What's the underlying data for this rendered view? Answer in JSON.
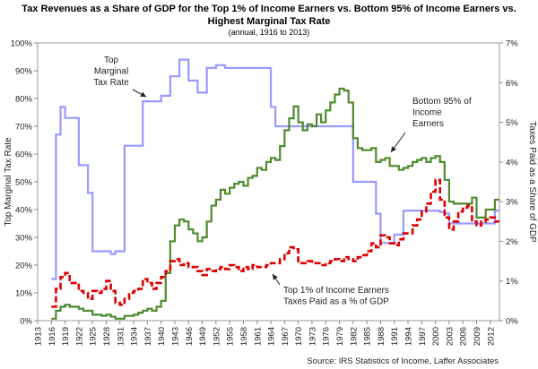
{
  "chart_data": {
    "type": "line",
    "title_line1": "Tax Revenues as a Share of GDP for the Top 1% of Income Earners vs. Bottom 95% of Income Earners vs.",
    "title_line2": "Highest Marginal Tax Rate",
    "subtitle": "(annual, 1916 to 2013)",
    "ylabel_left": "Top Marginal Tax Rate",
    "ylabel_right": "Taxes Paid as a Share of GDP",
    "source": "Source: IRS Statistics of Income, Laffer Associates",
    "xlim": [
      1913,
      2014
    ],
    "ylim_left": [
      0,
      100
    ],
    "ylim_right": [
      0,
      7
    ],
    "x_ticks": [
      "1913",
      "1916",
      "1919",
      "1922",
      "1925",
      "1928",
      "1931",
      "1934",
      "1937",
      "1940",
      "1943",
      "1946",
      "1949",
      "1952",
      "1955",
      "1958",
      "1961",
      "1964",
      "1967",
      "1970",
      "1973",
      "1976",
      "1979",
      "1982",
      "1985",
      "1988",
      "1991",
      "1994",
      "1997",
      "2000",
      "2003",
      "2006",
      "2009",
      "2012"
    ],
    "y_ticks_left": [
      "0%",
      "10%",
      "20%",
      "30%",
      "40%",
      "50%",
      "60%",
      "70%",
      "80%",
      "90%",
      "100%"
    ],
    "y_ticks_right": [
      "0%",
      "1%",
      "2%",
      "3%",
      "4%",
      "5%",
      "6%",
      "7%"
    ],
    "series": [
      {
        "name": "Top Marginal Tax Rate",
        "axis": "left",
        "color": "#9999ff",
        "style": "step",
        "x": [
          1916,
          1917,
          1918,
          1919,
          1921,
          1922,
          1924,
          1925,
          1929,
          1930,
          1932,
          1936,
          1940,
          1941,
          1942,
          1944,
          1946,
          1948,
          1950,
          1951,
          1952,
          1954,
          1964,
          1965,
          1982,
          1987,
          1988,
          1991,
          1993,
          2001,
          2002,
          2003,
          2013,
          2014
        ],
        "y": [
          15,
          67,
          77,
          73,
          73,
          56,
          46,
          25,
          24,
          25,
          63,
          79,
          81,
          81,
          88,
          94,
          86.45,
          82.13,
          91,
          91,
          92,
          91,
          77,
          70,
          50,
          38.5,
          28,
          31,
          39.6,
          39.1,
          38.6,
          35,
          39.6,
          39.6
        ]
      },
      {
        "name": "Bottom 95% of Income Earners",
        "axis": "right",
        "color": "#4e8a2e",
        "style": "step",
        "x": [
          1916,
          1917,
          1918,
          1919,
          1920,
          1921,
          1922,
          1923,
          1924,
          1925,
          1926,
          1927,
          1928,
          1929,
          1930,
          1931,
          1932,
          1933,
          1934,
          1935,
          1936,
          1937,
          1938,
          1939,
          1940,
          1941,
          1942,
          1943,
          1944,
          1945,
          1946,
          1947,
          1948,
          1949,
          1950,
          1951,
          1952,
          1953,
          1954,
          1955,
          1956,
          1957,
          1958,
          1959,
          1960,
          1961,
          1962,
          1963,
          1964,
          1965,
          1966,
          1967,
          1968,
          1969,
          1970,
          1971,
          1972,
          1973,
          1974,
          1975,
          1976,
          1977,
          1978,
          1979,
          1980,
          1981,
          1982,
          1983,
          1984,
          1985,
          1986,
          1987,
          1988,
          1989,
          1990,
          1991,
          1992,
          1993,
          1994,
          1995,
          1996,
          1997,
          1998,
          1999,
          2000,
          2001,
          2002,
          2003,
          2004,
          2005,
          2006,
          2007,
          2008,
          2009,
          2010,
          2011,
          2012,
          2013,
          2014
        ],
        "y": [
          0.05,
          0.25,
          0.35,
          0.4,
          0.35,
          0.35,
          0.3,
          0.25,
          0.25,
          0.15,
          0.15,
          0.12,
          0.15,
          0.1,
          0.05,
          0.05,
          0.12,
          0.12,
          0.15,
          0.2,
          0.25,
          0.3,
          0.25,
          0.35,
          0.5,
          1.2,
          2.0,
          2.4,
          2.55,
          2.5,
          2.3,
          2.2,
          2.0,
          2.1,
          2.5,
          2.9,
          3.05,
          3.3,
          3.2,
          3.35,
          3.45,
          3.5,
          3.4,
          3.6,
          3.65,
          3.85,
          3.8,
          4.0,
          4.1,
          4.05,
          4.4,
          4.8,
          5.1,
          5.4,
          5.0,
          4.8,
          4.95,
          4.9,
          5.2,
          5.0,
          5.3,
          5.5,
          5.7,
          5.85,
          5.8,
          5.5,
          4.6,
          4.35,
          4.3,
          4.3,
          4.35,
          4.0,
          4.05,
          4.1,
          3.9,
          3.9,
          3.8,
          3.85,
          3.9,
          4.0,
          4.05,
          4.1,
          4.0,
          4.1,
          4.15,
          4.0,
          3.55,
          3.0,
          2.95,
          2.95,
          2.95,
          2.95,
          3.1,
          2.6,
          2.6,
          2.8,
          2.8,
          3.05,
          3.05
        ]
      },
      {
        "name": "Top 1% of Income Earners Taxes Paid as a % of GDP",
        "axis": "right",
        "color": "#dd0000",
        "style": "dashed-step",
        "x": [
          1916,
          1917,
          1918,
          1919,
          1920,
          1921,
          1922,
          1923,
          1924,
          1925,
          1926,
          1927,
          1928,
          1929,
          1930,
          1931,
          1932,
          1933,
          1934,
          1935,
          1936,
          1937,
          1938,
          1939,
          1940,
          1941,
          1942,
          1943,
          1944,
          1945,
          1946,
          1947,
          1948,
          1949,
          1950,
          1951,
          1952,
          1953,
          1954,
          1955,
          1956,
          1957,
          1958,
          1959,
          1960,
          1961,
          1962,
          1963,
          1964,
          1965,
          1966,
          1967,
          1968,
          1969,
          1970,
          1971,
          1972,
          1973,
          1974,
          1975,
          1976,
          1977,
          1978,
          1979,
          1980,
          1981,
          1982,
          1983,
          1984,
          1985,
          1986,
          1987,
          1988,
          1989,
          1990,
          1991,
          1992,
          1993,
          1994,
          1995,
          1996,
          1997,
          1998,
          1999,
          2000,
          2001,
          2002,
          2003,
          2004,
          2005,
          2006,
          2007,
          2008,
          2009,
          2010,
          2011,
          2012,
          2013,
          2014
        ],
        "y": [
          0.35,
          0.8,
          1.1,
          1.2,
          0.95,
          0.95,
          0.75,
          0.7,
          0.55,
          0.75,
          0.7,
          0.8,
          1.0,
          0.75,
          0.45,
          0.4,
          0.55,
          0.7,
          0.75,
          0.8,
          1.05,
          0.95,
          0.8,
          0.95,
          1.1,
          1.25,
          1.5,
          1.55,
          1.4,
          1.45,
          1.35,
          1.35,
          1.25,
          1.15,
          1.3,
          1.25,
          1.3,
          1.35,
          1.3,
          1.4,
          1.35,
          1.25,
          1.35,
          1.3,
          1.4,
          1.35,
          1.35,
          1.4,
          1.45,
          1.45,
          1.55,
          1.7,
          1.85,
          1.8,
          1.45,
          1.45,
          1.5,
          1.45,
          1.45,
          1.4,
          1.45,
          1.5,
          1.55,
          1.5,
          1.6,
          1.55,
          1.5,
          1.6,
          1.65,
          1.75,
          1.95,
          1.85,
          2.15,
          2.1,
          1.95,
          1.9,
          2.05,
          2.2,
          2.2,
          2.4,
          2.55,
          2.75,
          2.95,
          3.25,
          3.55,
          3.05,
          2.6,
          2.3,
          2.5,
          2.75,
          2.85,
          2.9,
          2.5,
          2.4,
          2.5,
          2.55,
          2.6,
          2.5,
          2.5
        ]
      }
    ],
    "annotations": [
      {
        "lines": [
          "Top",
          "Marginal",
          "Tax Rate"
        ]
      },
      {
        "lines": [
          "Bottom 95% of",
          "Income",
          "Earners"
        ]
      },
      {
        "lines": [
          "Top 1% of Income Earners",
          "Taxes Paid as a % of GDP"
        ]
      }
    ]
  }
}
